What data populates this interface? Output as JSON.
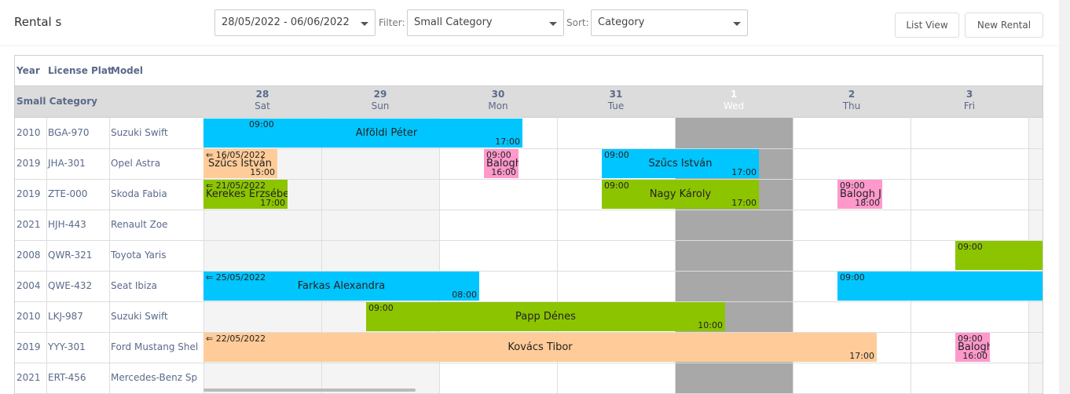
{
  "header": {
    "title": "Rental s",
    "date_range": "28/05/2022 - 06/06/2022",
    "filter_label": "Filter:",
    "filter_value": "Small Category",
    "sort_label": "Sort:",
    "sort_value": "Category",
    "list_view": "List View",
    "new_rental": "New Rental"
  },
  "columns": {
    "year": "Year",
    "plate": "License Plat",
    "model": "Model",
    "group": "Small Category"
  },
  "days": [
    {
      "n": "28",
      "w": "Sat"
    },
    {
      "n": "29",
      "w": "Sun"
    },
    {
      "n": "30",
      "w": "Mon"
    },
    {
      "n": "31",
      "w": "Tue"
    },
    {
      "n": "1",
      "w": "Wed"
    },
    {
      "n": "2",
      "w": "Thu"
    },
    {
      "n": "3",
      "w": "Fri"
    }
  ],
  "cars": [
    {
      "year": "2010",
      "plate": "BGA-970",
      "model": "Suzuki Swift"
    },
    {
      "year": "2019",
      "plate": "JHA-301",
      "model": "Opel Astra"
    },
    {
      "year": "2019",
      "plate": "ZTE-000",
      "model": "Skoda Fabia"
    },
    {
      "year": "2021",
      "plate": "HJH-443",
      "model": "Renault Zoe"
    },
    {
      "year": "2008",
      "plate": "QWR-321",
      "model": "Toyota Yaris"
    },
    {
      "year": "2004",
      "plate": "QWE-432",
      "model": "Seat Ibiza"
    },
    {
      "year": "2010",
      "plate": "LKJ-987",
      "model": "Suzuki Swift"
    },
    {
      "year": "2019",
      "plate": "YYY-301",
      "model": "Ford Mustang Shel"
    },
    {
      "year": "2021",
      "plate": "ERT-456",
      "model": "Mercedes-Benz Sp"
    }
  ],
  "events": {
    "e1": {
      "start": "09:00",
      "end": "17:00",
      "name": "Alföldi Péter"
    },
    "e2": {
      "start": "⇐ 16/05/2022",
      "end": "15:00",
      "name": "Szűcs István"
    },
    "e3": {
      "start": "09:00",
      "end": "16:00",
      "name": "Balogh"
    },
    "e4": {
      "start": "09:00",
      "end": "17:00",
      "name": "Szűcs István"
    },
    "e5": {
      "start": "⇐ 21/05/2022",
      "end": "17:00",
      "name": "Kerekes Erzsébe"
    },
    "e6": {
      "start": "09:00",
      "end": "17:00",
      "name": "Nagy Károly"
    },
    "e7": {
      "start": "09:00",
      "end": "18:00",
      "name": "Balogh J"
    },
    "e8": {
      "start": "09:00",
      "end": "",
      "name": ""
    },
    "e9": {
      "start": "⇐ 25/05/2022",
      "end": "08:00",
      "name": "Farkas Alexandra"
    },
    "e10": {
      "start": "09:00",
      "end": "",
      "name": ""
    },
    "e11": {
      "start": "09:00",
      "end": "10:00",
      "name": "Papp Dénes"
    },
    "e12": {
      "start": "⇐ 22/05/2022",
      "end": "17:00",
      "name": "Kovács Tibor"
    },
    "e13": {
      "start": "09:00",
      "end": "16:00",
      "name": "Balogh"
    }
  },
  "colors": {
    "blue": "#00c5ff",
    "green": "#8cc400",
    "orange": "#ffcc99",
    "pink": "#ff99cc",
    "weekend": "#f4f4f4",
    "today": "#a8a8a8"
  }
}
